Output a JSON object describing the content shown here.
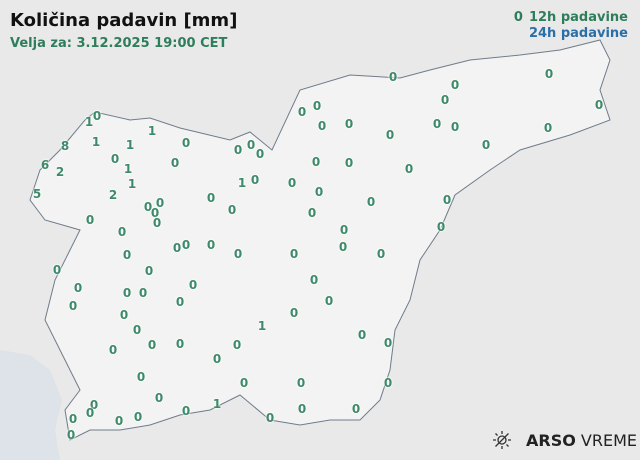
{
  "header": {
    "title": "Količina padavin [mm]",
    "valid": "Velja za: 3.12.2025 19:00 CET"
  },
  "legend": {
    "symbol": "0",
    "label_12h": "12h padavine",
    "label_24h": "24h padavine",
    "color_12h": "#2e7d5b",
    "color_24h": "#2a6fa8"
  },
  "logo": {
    "brand": "ARSO",
    "product": "VREME",
    "icon": "sun-icon"
  },
  "stations": [
    "0",
    "0",
    "0",
    "0",
    "0",
    "0",
    "0",
    "1",
    "0",
    "1",
    "0",
    "0",
    "0",
    "0",
    "0",
    "0",
    "8",
    "1",
    "1",
    "0",
    "0",
    "0",
    "0",
    "0",
    "6",
    "2",
    "0",
    "1",
    "0",
    "0",
    "0",
    "0",
    "5",
    "2",
    "1",
    "1",
    "0",
    "0",
    "0",
    "0",
    "0",
    "0",
    "0",
    "0",
    "0",
    "0",
    "0",
    "0",
    "0",
    "0",
    "0",
    "0",
    "0",
    "0",
    "0",
    "0",
    "0",
    "0",
    "0",
    "0",
    "0",
    "0",
    "0",
    "0",
    "0",
    "0",
    "0",
    "0",
    "0",
    "0",
    "0",
    "1",
    "0",
    "0",
    "0",
    "0",
    "0",
    "0",
    "0",
    "0",
    "0",
    "0",
    "0",
    "0",
    "0",
    "0",
    "0",
    "1",
    "0",
    "0",
    "0",
    "0",
    "0",
    "0",
    "0",
    "0",
    "0"
  ]
}
